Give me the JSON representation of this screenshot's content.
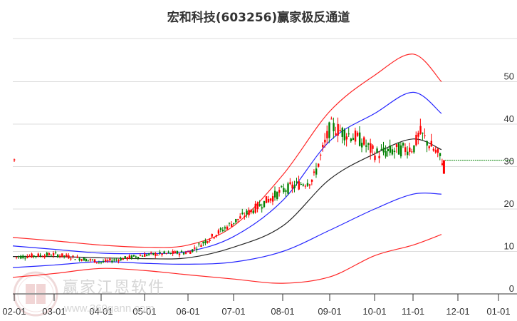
{
  "title": "宏和科技(603256)赢家极反通道",
  "watermark": {
    "brand": "赢家江恩软件",
    "url": "www.360gann.com",
    "logo_chars": [
      "江",
      "赢",
      "恩",
      "家"
    ]
  },
  "chart_data": {
    "type": "candlestick",
    "title": "宏和科技(603256)赢家极反通道",
    "xlabel": "",
    "ylabel": "",
    "ylim": [
      0,
      55
    ],
    "yticks": [
      0,
      10,
      20,
      30,
      40,
      50
    ],
    "xticks": [
      "02-01",
      "03-01",
      "04-01",
      "05-01",
      "06-01",
      "07-01",
      "08-01",
      "09-01",
      "10-01",
      "11-01",
      "12-01",
      "01-01"
    ],
    "grid": "horizontal",
    "axis_position": "right",
    "colors": {
      "up": "#ff0000",
      "down": "#008000",
      "outer_band": "#ff0000",
      "inner_band": "#0000ff",
      "mid_line": "#000000",
      "last_price_line": "#008000",
      "grid": "#dddddd"
    },
    "last_price": 31.5,
    "series": [
      {
        "name": "upper_outer_band",
        "color": "#ff0000",
        "x": [
          "02-01",
          "03-01",
          "04-01",
          "05-01",
          "06-01",
          "07-01",
          "08-01",
          "09-01",
          "10-01",
          "11-01",
          "11-20"
        ],
        "values": [
          13.3,
          12.5,
          11.5,
          11.0,
          11.5,
          16.0,
          28.0,
          43.0,
          51.5,
          56.5,
          50.0
        ]
      },
      {
        "name": "upper_inner_band",
        "color": "#0000ff",
        "x": [
          "02-01",
          "03-01",
          "04-01",
          "05-01",
          "06-01",
          "07-01",
          "08-01",
          "09-01",
          "10-01",
          "11-01",
          "11-20"
        ],
        "values": [
          11.3,
          10.5,
          9.6,
          9.5,
          10.0,
          13.5,
          22.0,
          36.0,
          42.5,
          47.5,
          42.5
        ]
      },
      {
        "name": "mid_line",
        "color": "#000000",
        "x": [
          "02-01",
          "03-01",
          "04-01",
          "05-01",
          "06-01",
          "07-01",
          "08-01",
          "09-01",
          "10-01",
          "11-01",
          "11-20"
        ],
        "values": [
          8.8,
          8.8,
          8.5,
          8.3,
          8.5,
          11.0,
          16.0,
          27.0,
          33.0,
          36.5,
          34.0
        ]
      },
      {
        "name": "lower_inner_band",
        "color": "#0000ff",
        "x": [
          "02-01",
          "03-01",
          "04-01",
          "05-01",
          "06-01",
          "07-01",
          "08-01",
          "09-01",
          "10-01",
          "11-01",
          "11-20"
        ],
        "values": [
          6.2,
          6.8,
          7.6,
          7.2,
          7.0,
          7.5,
          10.0,
          15.0,
          20.0,
          23.5,
          23.5
        ]
      },
      {
        "name": "lower_outer_band",
        "color": "#ff0000",
        "x": [
          "02-01",
          "03-01",
          "04-01",
          "05-01",
          "06-01",
          "07-01",
          "08-01",
          "09-01",
          "10-01",
          "11-01",
          "11-20"
        ],
        "values": [
          3.9,
          4.8,
          6.0,
          5.5,
          4.5,
          3.5,
          2.5,
          4.0,
          9.0,
          11.5,
          14.0
        ]
      },
      {
        "name": "price_close",
        "color": "#ff0000",
        "x": [
          "02-01",
          "03-01",
          "04-01",
          "05-01",
          "06-01",
          "07-01",
          "08-01",
          "08-20",
          "09-01",
          "09-20",
          "10-01",
          "11-01",
          "11-05",
          "11-20"
        ],
        "values": [
          8.7,
          9.3,
          7.5,
          9.2,
          9.8,
          17.0,
          24.5,
          27.0,
          39.5,
          36.5,
          33.0,
          34.5,
          38.0,
          31.5
        ]
      }
    ]
  }
}
